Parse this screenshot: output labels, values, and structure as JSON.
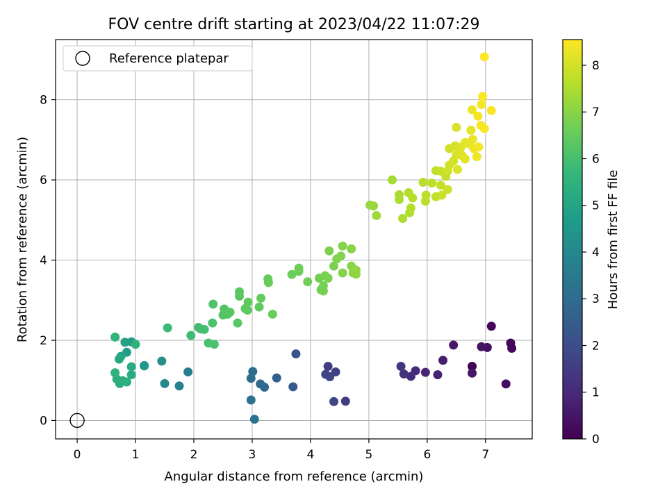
{
  "chart_data": {
    "type": "scatter",
    "title": "FOV centre drift starting at 2023/04/22 11:07:29",
    "xlabel": "Angular distance from reference (arcmin)",
    "ylabel": "Rotation from reference (arcmin)",
    "xlim": [
      -0.37,
      7.8
    ],
    "ylim": [
      -0.46,
      9.5
    ],
    "xticks": [
      0,
      1,
      2,
      3,
      4,
      5,
      6,
      7
    ],
    "yticks": [
      0,
      2,
      4,
      6,
      8
    ],
    "grid": true,
    "legend": {
      "placement": "top-left",
      "entries": [
        {
          "label": "Reference platepar",
          "marker": "open-circle"
        }
      ]
    },
    "reference_point": {
      "x": 0,
      "y": 0
    },
    "colorbar": {
      "label": "Hours from first FF file",
      "colormap": "viridis",
      "range": [
        0,
        8.55
      ],
      "ticks": [
        0,
        1,
        2,
        3,
        4,
        5,
        6,
        7,
        8
      ]
    },
    "colors": {
      "viridis": [
        "#440154",
        "#482878",
        "#3e4a89",
        "#31688e",
        "#26828e",
        "#1f9e89",
        "#35b779",
        "#6ece58",
        "#b5de2b",
        "#fde725"
      ]
    },
    "series": [
      {
        "points": [
          [
            6.77,
            1.35,
            0.05
          ],
          [
            7.1,
            2.35,
            0.1
          ],
          [
            7.43,
            1.93,
            0.15
          ],
          [
            7.45,
            1.8,
            0.2
          ],
          [
            7.35,
            0.91,
            0.3
          ],
          [
            7.03,
            1.82,
            0.35
          ],
          [
            6.93,
            1.84,
            0.4
          ],
          [
            6.77,
            1.18,
            0.5
          ],
          [
            6.45,
            1.88,
            0.6
          ],
          [
            6.27,
            1.5,
            0.7
          ],
          [
            6.18,
            1.14,
            0.8
          ],
          [
            5.97,
            1.2,
            0.9
          ],
          [
            5.8,
            1.24,
            1.0
          ],
          [
            5.72,
            1.1,
            1.1
          ],
          [
            5.6,
            1.16,
            1.2
          ],
          [
            5.55,
            1.35,
            1.3
          ],
          [
            4.6,
            0.48,
            1.5
          ],
          [
            4.3,
            1.35,
            1.55
          ],
          [
            4.43,
            1.21,
            1.6
          ],
          [
            4.26,
            1.15,
            1.7
          ],
          [
            4.33,
            1.09,
            1.75
          ],
          [
            4.4,
            0.47,
            1.8
          ],
          [
            3.75,
            1.66,
            2.2
          ],
          [
            3.7,
            0.84,
            2.4
          ],
          [
            3.42,
            1.06,
            2.6
          ],
          [
            3.21,
            0.83,
            2.8
          ],
          [
            3.14,
            0.91,
            2.9
          ],
          [
            3.01,
            1.22,
            3.0
          ],
          [
            2.98,
            1.05,
            3.1
          ],
          [
            2.98,
            0.51,
            3.2
          ],
          [
            3.04,
            0.03,
            3.3
          ],
          [
            1.9,
            1.21,
            3.6
          ],
          [
            1.75,
            0.86,
            3.8
          ],
          [
            1.5,
            0.92,
            4.0
          ],
          [
            1.45,
            1.48,
            4.2
          ],
          [
            1.15,
            1.37,
            4.5
          ],
          [
            1.15,
            1.36,
            4.6
          ],
          [
            0.93,
            1.96,
            4.7
          ],
          [
            0.85,
            1.7,
            4.8
          ],
          [
            0.82,
            1.95,
            4.9
          ],
          [
            0.75,
            1.6,
            5.0
          ],
          [
            0.72,
            1.53,
            5.1
          ],
          [
            0.78,
            0.99,
            5.15
          ],
          [
            0.93,
            1.34,
            5.2
          ],
          [
            0.93,
            1.14,
            5.25
          ],
          [
            0.68,
            1.03,
            5.3
          ],
          [
            0.73,
            0.92,
            5.35
          ],
          [
            0.85,
            0.96,
            5.4
          ],
          [
            0.65,
            1.19,
            5.45
          ],
          [
            1.0,
            1.9,
            5.5
          ],
          [
            0.65,
            2.08,
            5.55
          ],
          [
            1.55,
            2.31,
            5.8
          ],
          [
            1.95,
            2.12,
            5.85
          ],
          [
            2.08,
            2.32,
            5.9
          ],
          [
            2.12,
            2.28,
            5.95
          ],
          [
            2.18,
            2.27,
            6.0
          ],
          [
            2.25,
            1.93,
            6.05
          ],
          [
            2.35,
            1.9,
            6.1
          ],
          [
            2.32,
            2.43,
            6.1
          ],
          [
            2.33,
            2.9,
            6.15
          ],
          [
            2.5,
            2.63,
            6.2
          ],
          [
            2.52,
            2.78,
            6.2
          ],
          [
            2.58,
            2.65,
            6.25
          ],
          [
            2.62,
            2.7,
            6.3
          ],
          [
            2.75,
            2.43,
            6.3
          ],
          [
            2.78,
            3.1,
            6.35
          ],
          [
            2.78,
            3.21,
            6.35
          ],
          [
            2.88,
            2.79,
            6.4
          ],
          [
            2.92,
            2.75,
            6.4
          ],
          [
            2.93,
            2.95,
            6.45
          ],
          [
            3.12,
            2.83,
            6.45
          ],
          [
            3.15,
            3.05,
            6.5
          ],
          [
            3.27,
            3.53,
            6.5
          ],
          [
            3.28,
            3.44,
            6.55
          ],
          [
            3.35,
            2.65,
            6.55
          ],
          [
            3.68,
            3.64,
            6.6
          ],
          [
            3.8,
            3.72,
            6.6
          ],
          [
            3.8,
            3.8,
            6.65
          ],
          [
            3.95,
            3.46,
            6.65
          ],
          [
            4.15,
            3.55,
            6.7
          ],
          [
            4.18,
            3.26,
            6.7
          ],
          [
            4.22,
            3.23,
            6.75
          ],
          [
            4.22,
            3.36,
            6.75
          ],
          [
            4.25,
            3.61,
            6.8
          ],
          [
            4.3,
            3.55,
            6.8
          ],
          [
            4.32,
            4.23,
            6.85
          ],
          [
            4.4,
            3.85,
            6.85
          ],
          [
            4.45,
            4.03,
            6.9
          ],
          [
            4.52,
            4.1,
            6.9
          ],
          [
            4.55,
            4.35,
            6.95
          ],
          [
            4.55,
            3.68,
            6.95
          ],
          [
            4.7,
            4.28,
            7.0
          ],
          [
            4.7,
            3.85,
            7.0
          ],
          [
            4.73,
            3.68,
            7.05
          ],
          [
            4.78,
            3.65,
            7.05
          ],
          [
            4.78,
            3.75,
            7.1
          ],
          [
            5.02,
            5.37,
            7.2
          ],
          [
            5.08,
            5.35,
            7.25
          ],
          [
            5.13,
            5.11,
            7.3
          ],
          [
            5.4,
            6.0,
            7.4
          ],
          [
            5.52,
            5.63,
            7.45
          ],
          [
            5.52,
            5.51,
            7.5
          ],
          [
            5.58,
            5.04,
            7.5
          ],
          [
            5.68,
            5.68,
            7.55
          ],
          [
            5.7,
            5.18,
            7.55
          ],
          [
            5.72,
            5.3,
            7.6
          ],
          [
            5.75,
            5.55,
            7.6
          ],
          [
            5.93,
            5.94,
            7.65
          ],
          [
            5.97,
            5.47,
            7.65
          ],
          [
            5.98,
            5.62,
            7.7
          ],
          [
            6.08,
            5.92,
            7.7
          ],
          [
            6.15,
            6.23,
            7.75
          ],
          [
            6.15,
            5.58,
            7.75
          ],
          [
            6.23,
            6.22,
            7.8
          ],
          [
            6.23,
            5.87,
            7.8
          ],
          [
            6.25,
            5.62,
            7.85
          ],
          [
            6.32,
            6.09,
            7.85
          ],
          [
            6.35,
            5.76,
            7.9
          ],
          [
            6.35,
            6.22,
            7.9
          ],
          [
            6.38,
            6.37,
            7.95
          ],
          [
            6.38,
            6.78,
            7.95
          ],
          [
            6.45,
            6.47,
            8.0
          ],
          [
            6.48,
            6.85,
            8.0
          ],
          [
            6.5,
            6.63,
            8.05
          ],
          [
            6.5,
            7.31,
            8.05
          ],
          [
            6.52,
            6.26,
            8.1
          ],
          [
            6.55,
            6.72,
            8.1
          ],
          [
            6.58,
            6.82,
            8.15
          ],
          [
            6.6,
            6.6,
            8.15
          ],
          [
            6.65,
            6.52,
            8.2
          ],
          [
            6.65,
            6.93,
            8.2
          ],
          [
            6.72,
            6.9,
            8.25
          ],
          [
            6.75,
            7.24,
            8.25
          ],
          [
            6.77,
            7.75,
            8.3
          ],
          [
            6.78,
            7.01,
            8.3
          ],
          [
            6.8,
            6.78,
            8.35
          ],
          [
            6.85,
            6.58,
            8.35
          ],
          [
            6.87,
            7.59,
            8.4
          ],
          [
            6.88,
            6.82,
            8.4
          ],
          [
            6.92,
            7.36,
            8.45
          ],
          [
            6.93,
            7.88,
            8.45
          ],
          [
            6.95,
            8.08,
            8.5
          ],
          [
            6.98,
            7.28,
            8.5
          ],
          [
            7.1,
            7.73,
            8.5
          ],
          [
            6.98,
            9.07,
            8.55
          ]
        ]
      }
    ]
  }
}
